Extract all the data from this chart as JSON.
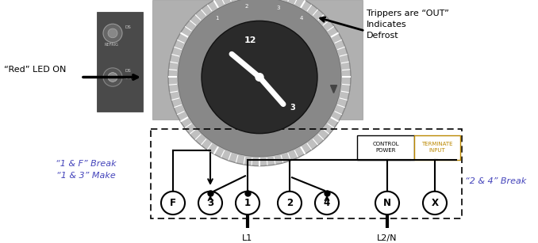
{
  "bg_color": "#ffffff",
  "led_label": "“Red” LED ON",
  "arrow_label_trippers": "Trippers are “OUT”\nIndicates\nDefrost",
  "label_1f_break": "“1 & F” Break\n“1 & 3” Make",
  "label_24_break": "“2 & 4” Break",
  "label_L1": "L1",
  "label_L2N": "L2/N",
  "label_control": "CONTROL\nPOWER",
  "label_terminate": "TERMINATE\nINPUT",
  "terminals": [
    "F",
    "3",
    "1",
    "2",
    "4",
    "N",
    "X"
  ],
  "font_color_blue": "#4444bb",
  "font_color_black": "#000000",
  "font_color_orange": "#bb8800",
  "line_color": "#000000",
  "line_width": 1.5
}
